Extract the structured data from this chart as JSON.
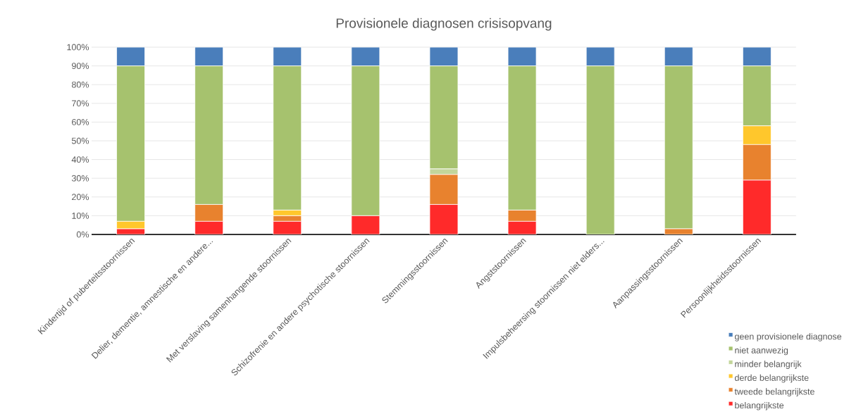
{
  "chart_data": {
    "type": "bar",
    "stacked": true,
    "title": "Provisionele  diagnosen crisisopvang",
    "categories": [
      "Kindertijd of puberteitsstoornissen",
      "Delier, dementie, amnestische en andere...",
      "Met verslaving samenhangende stoornissen",
      "Schizofrenie en andere psychotische stoornissen",
      "Stemmingsstoornissen",
      "Angststoornissen",
      "Impulsbeheersing stoornissen niet elders...",
      "Aanpassingsstoornissen",
      "Persoonlijkheidsstoornissen"
    ],
    "series": [
      {
        "name": "belangrijkste",
        "color": "#ff2a2a",
        "values": [
          3,
          7,
          7,
          10,
          16,
          7,
          0,
          0,
          29
        ]
      },
      {
        "name": "tweede  belangrijkste",
        "color": "#e8822e",
        "values": [
          0,
          9,
          3,
          0,
          16,
          6,
          0,
          3,
          19
        ]
      },
      {
        "name": "derde belangrijkste",
        "color": "#ffc72c",
        "values": [
          4,
          0,
          3,
          0,
          0,
          0,
          0,
          0,
          10
        ]
      },
      {
        "name": "minder belangrijk",
        "color": "#c3d69b",
        "values": [
          0,
          0,
          0,
          0,
          3,
          0,
          0,
          0,
          0
        ]
      },
      {
        "name": "niet aanwezig",
        "color": "#a6c26e",
        "values": [
          83,
          74,
          77,
          80,
          55,
          77,
          90,
          87,
          32
        ]
      },
      {
        "name": "geen  provisionele diagnose",
        "color": "#4a7ebb",
        "values": [
          10,
          10,
          10,
          10,
          10,
          10,
          10,
          10,
          10
        ]
      }
    ],
    "ylim": [
      0,
      100
    ],
    "yticks": [
      {
        "value": 0,
        "label": "0%"
      },
      {
        "value": 10,
        "label": "10%"
      },
      {
        "value": 20,
        "label": "20%"
      },
      {
        "value": 30,
        "label": "30%"
      },
      {
        "value": 40,
        "label": "40%"
      },
      {
        "value": 50,
        "label": "50%"
      },
      {
        "value": 60,
        "label": "60%"
      },
      {
        "value": 70,
        "label": "70%"
      },
      {
        "value": 80,
        "label": "80%"
      },
      {
        "value": 90,
        "label": "90%"
      },
      {
        "value": 100,
        "label": "100%"
      }
    ],
    "grid": "y",
    "legend": "bottom right"
  }
}
